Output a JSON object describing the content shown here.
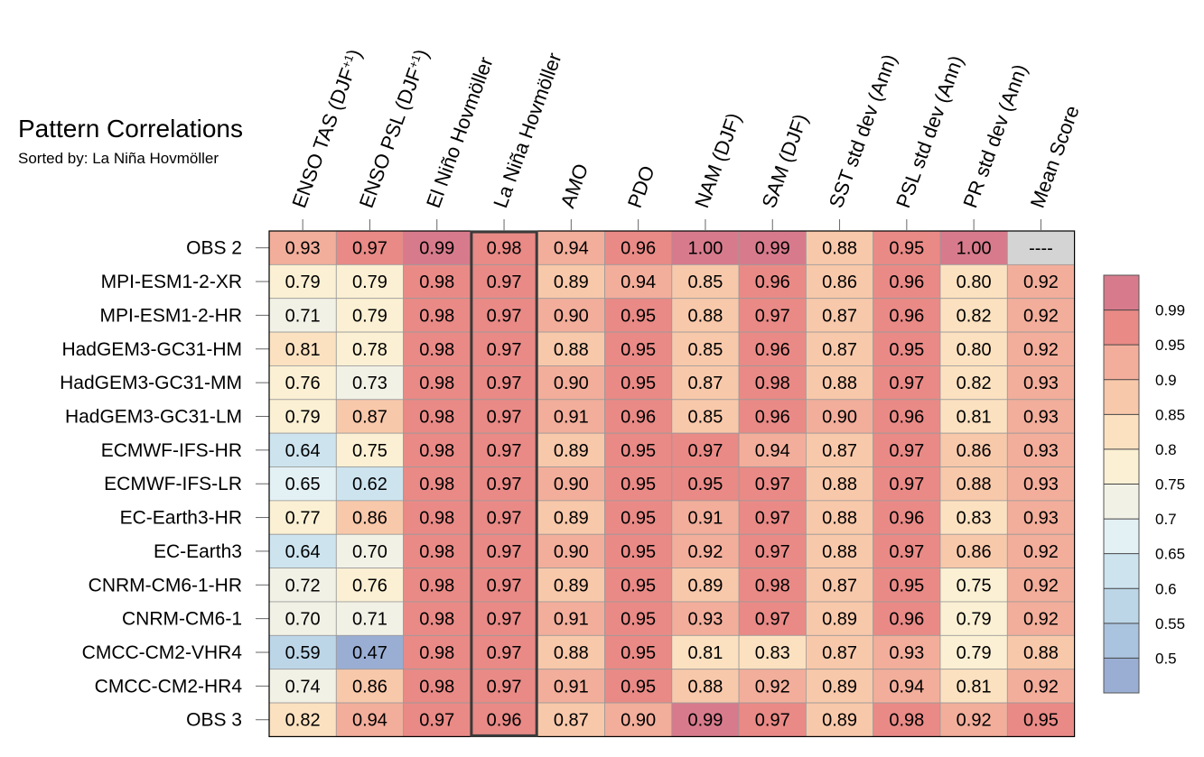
{
  "chart_data": {
    "type": "heatmap",
    "title": "Pattern Correlations",
    "subtitle": "Sorted by: La Niña Hovmöller",
    "columns": [
      {
        "main": "ENSO TAS (DJF",
        "sup": "+1",
        "tail": ")"
      },
      {
        "main": "ENSO PSL (DJF",
        "sup": "+1",
        "tail": ")"
      },
      {
        "main": "El Niño Hovmöller",
        "sup": "",
        "tail": ""
      },
      {
        "main": "La Niña Hovmöller",
        "sup": "",
        "tail": ""
      },
      {
        "main": "AMO",
        "sup": "",
        "tail": ""
      },
      {
        "main": "PDO",
        "sup": "",
        "tail": ""
      },
      {
        "main": "NAM (DJF)",
        "sup": "",
        "tail": ""
      },
      {
        "main": "SAM (DJF)",
        "sup": "",
        "tail": ""
      },
      {
        "main": "SST std dev (Ann)",
        "sup": "",
        "tail": ""
      },
      {
        "main": "PSL std dev (Ann)",
        "sup": "",
        "tail": ""
      },
      {
        "main": "PR std dev (Ann)",
        "sup": "",
        "tail": ""
      },
      {
        "main": "Mean Score",
        "sup": "",
        "tail": ""
      }
    ],
    "sorted_column_index": 3,
    "missing_label": "----",
    "rows": [
      {
        "name": "OBS 2",
        "values": [
          0.93,
          0.97,
          0.99,
          0.98,
          0.94,
          0.96,
          1.0,
          0.99,
          0.88,
          0.95,
          1.0,
          null
        ]
      },
      {
        "name": "MPI-ESM1-2-XR",
        "values": [
          0.79,
          0.79,
          0.98,
          0.97,
          0.89,
          0.94,
          0.85,
          0.96,
          0.86,
          0.96,
          0.8,
          0.92
        ]
      },
      {
        "name": "MPI-ESM1-2-HR",
        "values": [
          0.71,
          0.79,
          0.98,
          0.97,
          0.9,
          0.95,
          0.88,
          0.97,
          0.87,
          0.96,
          0.82,
          0.92
        ]
      },
      {
        "name": "HadGEM3-GC31-HM",
        "values": [
          0.81,
          0.78,
          0.98,
          0.97,
          0.88,
          0.95,
          0.85,
          0.96,
          0.87,
          0.95,
          0.8,
          0.92
        ]
      },
      {
        "name": "HadGEM3-GC31-MM",
        "values": [
          0.76,
          0.73,
          0.98,
          0.97,
          0.9,
          0.95,
          0.87,
          0.98,
          0.88,
          0.97,
          0.82,
          0.93
        ]
      },
      {
        "name": "HadGEM3-GC31-LM",
        "values": [
          0.79,
          0.87,
          0.98,
          0.97,
          0.91,
          0.96,
          0.85,
          0.96,
          0.9,
          0.96,
          0.81,
          0.93
        ]
      },
      {
        "name": "ECMWF-IFS-HR",
        "values": [
          0.64,
          0.75,
          0.98,
          0.97,
          0.89,
          0.95,
          0.97,
          0.94,
          0.87,
          0.97,
          0.86,
          0.93
        ]
      },
      {
        "name": "ECMWF-IFS-LR",
        "values": [
          0.65,
          0.62,
          0.98,
          0.97,
          0.9,
          0.95,
          0.95,
          0.97,
          0.88,
          0.97,
          0.88,
          0.93
        ]
      },
      {
        "name": "EC-Earth3-HR",
        "values": [
          0.77,
          0.86,
          0.98,
          0.97,
          0.89,
          0.95,
          0.91,
          0.97,
          0.88,
          0.96,
          0.83,
          0.93
        ]
      },
      {
        "name": "EC-Earth3",
        "values": [
          0.64,
          0.7,
          0.98,
          0.97,
          0.9,
          0.95,
          0.92,
          0.97,
          0.88,
          0.97,
          0.86,
          0.92
        ]
      },
      {
        "name": "CNRM-CM6-1-HR",
        "values": [
          0.72,
          0.76,
          0.98,
          0.97,
          0.89,
          0.95,
          0.89,
          0.98,
          0.87,
          0.95,
          0.75,
          0.92
        ]
      },
      {
        "name": "CNRM-CM6-1",
        "values": [
          0.7,
          0.71,
          0.98,
          0.97,
          0.91,
          0.95,
          0.93,
          0.97,
          0.89,
          0.96,
          0.79,
          0.92
        ]
      },
      {
        "name": "CMCC-CM2-VHR4",
        "values": [
          0.59,
          0.47,
          0.98,
          0.97,
          0.88,
          0.95,
          0.81,
          0.83,
          0.87,
          0.93,
          0.79,
          0.88
        ]
      },
      {
        "name": "CMCC-CM2-HR4",
        "values": [
          0.74,
          0.86,
          0.98,
          0.97,
          0.91,
          0.95,
          0.88,
          0.92,
          0.89,
          0.94,
          0.81,
          0.92
        ]
      },
      {
        "name": "OBS 3",
        "values": [
          0.82,
          0.94,
          0.97,
          0.96,
          0.87,
          0.9,
          0.99,
          0.97,
          0.89,
          0.98,
          0.92,
          0.95
        ]
      }
    ],
    "colorbar": {
      "levels": [
        0.5,
        0.55,
        0.6,
        0.65,
        0.7,
        0.75,
        0.8,
        0.85,
        0.9,
        0.95,
        0.99
      ],
      "tick_labels": [
        "0.5",
        "0.55",
        "0.6",
        "0.65",
        "0.7",
        "0.75",
        "0.8",
        "0.85",
        "0.9",
        "0.95",
        "0.99"
      ],
      "colors": [
        "#9aaed4",
        "#aac3de",
        "#bcd6e8",
        "#cde4ef",
        "#e3f0f4",
        "#f2f1e6",
        "#fbf0d3",
        "#fce1c0",
        "#f8c8aa",
        "#f2ae9b",
        "#e98a86",
        "#d77b8c"
      ]
    },
    "colors": {
      "missing": "#d4d4d4",
      "grid_line": "#9a9a9a",
      "highlight_border": "#3a3a3a"
    }
  }
}
